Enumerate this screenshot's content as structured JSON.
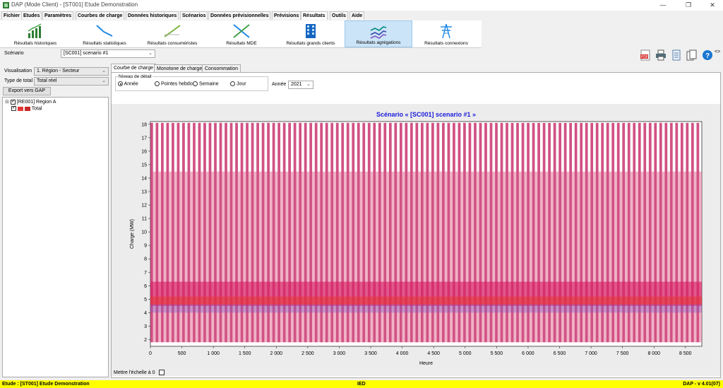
{
  "window": {
    "title": "DAP (Mode Client) - [ST001] Etude Demonstration",
    "controls": [
      "—",
      "❐",
      "✕"
    ]
  },
  "menu": [
    "Fichier",
    "Etudes",
    "Paramètres",
    "Courbes de charge",
    "Données historiques",
    "Scénarios",
    "Données prévisionnelles",
    "Prévisions",
    "Résultats",
    "Outils",
    "Aide"
  ],
  "menu_active": "Résultats",
  "ribbon": [
    {
      "label": "Résultats historiques",
      "icon": "bar-chart-icon"
    },
    {
      "label": "Résultats statistiques",
      "icon": "descending-line-icon"
    },
    {
      "label": "Résultats consuméristes",
      "icon": "ascending-line-icon"
    },
    {
      "label": "Résultats MDE",
      "icon": "crossing-lines-icon"
    },
    {
      "label": "Résultats grands clients",
      "icon": "building-icon"
    },
    {
      "label": "Résultats agrégations",
      "icon": "stacked-lines-icon",
      "active": true
    },
    {
      "label": "Résultats connexions",
      "icon": "power-pylon-icon"
    }
  ],
  "scenario": {
    "label": "Scénario",
    "value": "[SC001] scenario #1"
  },
  "visualisation": {
    "label": "Visualisation",
    "value": "1. Région - Secteur"
  },
  "type_total": {
    "label": "Type de total",
    "value": "Total réel"
  },
  "export_button": "Export vers GAP",
  "tree": {
    "region": "[RE001] Region A",
    "total": "Total",
    "expand": "⊞"
  },
  "tabs": [
    "Courbe de charge",
    "Monotone de charge",
    "Consommation"
  ],
  "detail": {
    "title": "Niveau de détail",
    "options": [
      "Année",
      "Pointes hebdo",
      "Semaine",
      "Jour"
    ],
    "selected": "Année",
    "year_label": "Année",
    "year_value": "2021"
  },
  "scale_zero_label": "Mettre l'échelle à 0",
  "toolbar_icons": [
    "pdf-icon",
    "print-icon",
    "document-icon",
    "copy-icon",
    "help-icon",
    "expand-arrows-icon"
  ],
  "toolbar_texts": {
    "pdf": "PDF",
    "help": "?",
    "expand": "<>"
  },
  "status": {
    "left": "Etude : [ST001] Etude Demonstration",
    "center": "IED",
    "right": "DAP - v 4.01(07)"
  },
  "chart_data": {
    "type": "line",
    "title": "Scénario « [SC001] scenario #1 »",
    "xlabel": "Heure",
    "ylabel": "Charge (MW)",
    "xlim": [
      0,
      8760
    ],
    "ylim": [
      1.5,
      18.2
    ],
    "xticks": [
      0,
      500,
      1000,
      1500,
      2000,
      2500,
      3000,
      3500,
      4000,
      4500,
      5000,
      5500,
      6000,
      6500,
      7000,
      7500,
      8000,
      8500
    ],
    "xtick_labels": [
      "0",
      "500",
      "1 000",
      "1 500",
      "2 000",
      "2 500",
      "3 000",
      "3 500",
      "4 000",
      "4 500",
      "5 000",
      "5 500",
      "6 000",
      "6 500",
      "7 000",
      "7 500",
      "8 000",
      "8 500"
    ],
    "yticks": [
      2,
      3,
      4,
      5,
      6,
      7,
      8,
      9,
      10,
      11,
      12,
      13,
      14,
      15,
      16,
      17,
      18
    ],
    "grid": false,
    "series": [
      {
        "color": "#c2185b",
        "upper": 18.1,
        "lower": 1.8,
        "band": [
          4.5,
          6.3
        ],
        "periods_per_year": 104
      },
      {
        "color": "#e53935",
        "upper": 6.3,
        "lower": 4.0,
        "band": [
          4.6,
          5.2
        ]
      },
      {
        "color": "#7e57c2",
        "upper": 4.7,
        "lower": 3.9,
        "band": [
          4.0,
          4.6
        ]
      }
    ]
  }
}
